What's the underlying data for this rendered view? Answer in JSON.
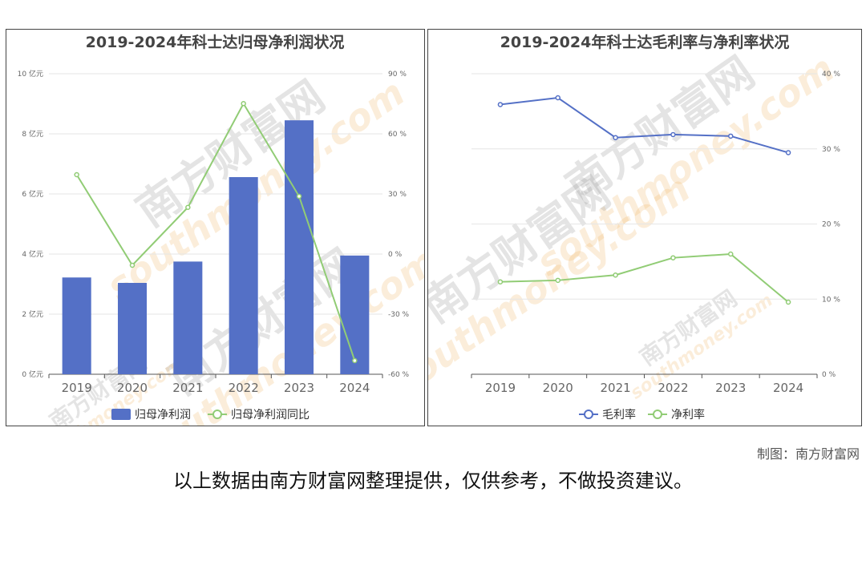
{
  "chart_data": [
    {
      "type": "bar+line",
      "title": "2019-2024年科士达归母净利润状况",
      "categories": [
        "2019",
        "2020",
        "2021",
        "2022",
        "2023",
        "2024"
      ],
      "series": [
        {
          "name": "归母净利润",
          "type": "bar",
          "axis": "left",
          "color": "#5470c6",
          "values": [
            3.22,
            3.04,
            3.75,
            6.56,
            8.45,
            3.95
          ]
        },
        {
          "name": "归母净利润同比",
          "type": "line",
          "axis": "right",
          "color": "#91cc75",
          "values": [
            39.6,
            -5.6,
            23.3,
            75.1,
            28.8,
            -53.2
          ]
        }
      ],
      "left_axis": {
        "ticks": [
          "0 亿元",
          "2 亿元",
          "4 亿元",
          "6 亿元",
          "8 亿元",
          "10 亿元"
        ],
        "ylim": [
          0,
          10
        ]
      },
      "right_axis": {
        "ticks": [
          "-60 %",
          "-30 %",
          "0 %",
          "30 %",
          "60 %",
          "90 %"
        ],
        "ylim": [
          -60,
          90
        ]
      },
      "grid": true,
      "legend": "bottom-center"
    },
    {
      "type": "line",
      "title": "2019-2024年科士达毛利率与净利率状况",
      "categories": [
        "2019",
        "2020",
        "2021",
        "2022",
        "2023",
        "2024"
      ],
      "series": [
        {
          "name": "毛利率",
          "color": "#5470c6",
          "values": [
            35.9,
            36.8,
            31.5,
            31.9,
            31.7,
            29.5
          ]
        },
        {
          "name": "净利率",
          "color": "#91cc75",
          "values": [
            12.3,
            12.5,
            13.2,
            15.5,
            16.0,
            9.6
          ]
        }
      ],
      "right_axis": {
        "ticks": [
          "0 %",
          "10 %",
          "20 %",
          "30 %",
          "40 %"
        ],
        "ylim": [
          0,
          40
        ]
      },
      "grid": true,
      "legend": "bottom-center"
    }
  ],
  "watermark": {
    "brand": "南方财富网",
    "url": "southmoney.com"
  },
  "credit": "制图：南方财富网",
  "footnote": "以上数据由南方财富网整理提供，仅供参考，不做投资建议。"
}
